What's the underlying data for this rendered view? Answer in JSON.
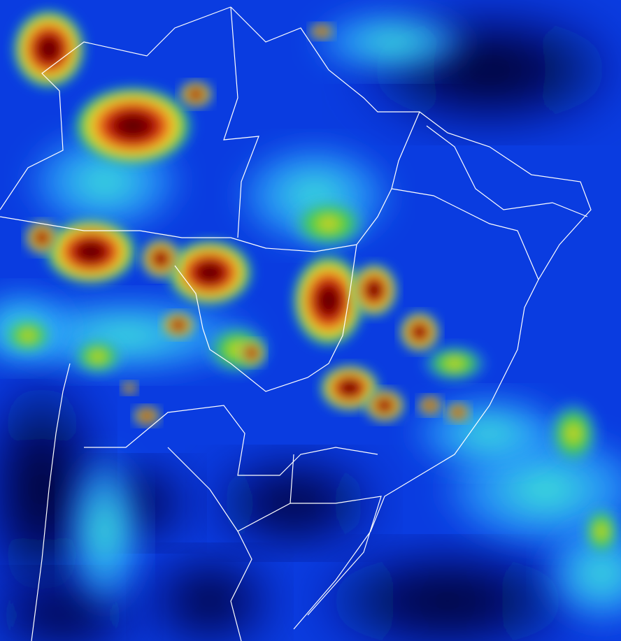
{
  "map": {
    "colors": {
      "background": "#0a3ce0",
      "deep": "#0418a0",
      "cold_clear": "#000010",
      "thin_cloud": "#30b0ff",
      "cirrus": "#40f0d0",
      "cloud_green": "#20c830",
      "cloud_yellow": "#f0e020",
      "cloud_orange": "#f07010",
      "cloud_red": "#c01010",
      "cloud_core": "#500000",
      "borders": "#ffffff"
    }
  }
}
